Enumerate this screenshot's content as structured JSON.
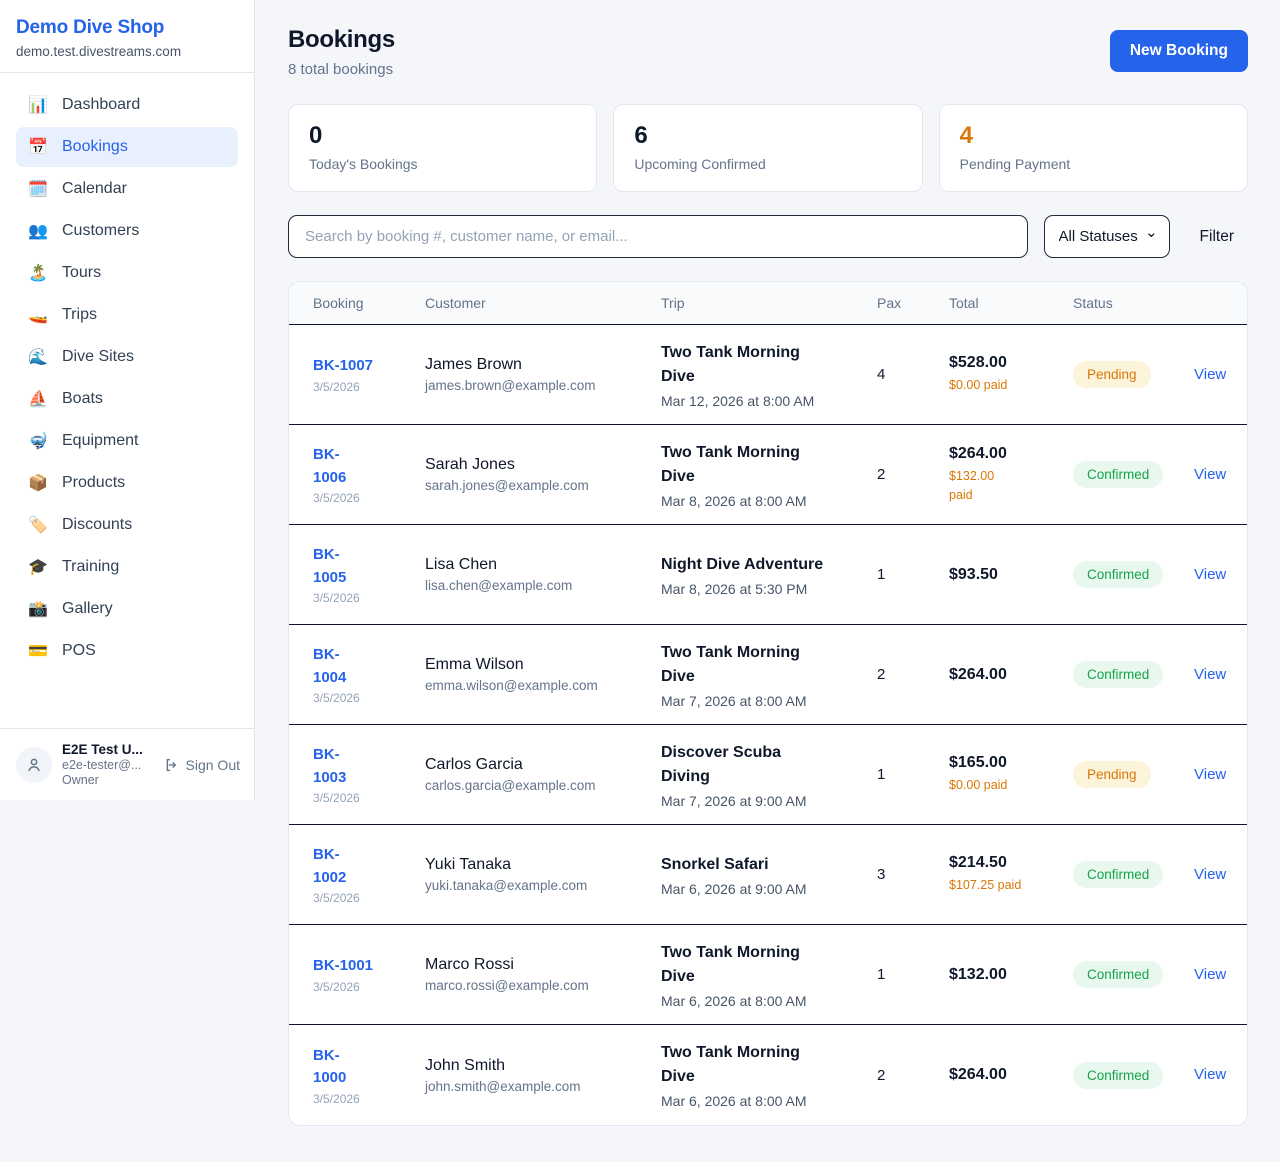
{
  "brand": {
    "name": "Demo Dive Shop",
    "domain": "demo.test.divestreams.com"
  },
  "sidebar": {
    "items": [
      {
        "label": "Dashboard",
        "icon": "📊",
        "icon_name": "bar-chart-icon",
        "active": false
      },
      {
        "label": "Bookings",
        "icon": "📅",
        "icon_name": "calendar-icon",
        "active": true
      },
      {
        "label": "Calendar",
        "icon": "🗓️",
        "icon_name": "spiral-calendar-icon",
        "active": false
      },
      {
        "label": "Customers",
        "icon": "👥",
        "icon_name": "people-icon",
        "active": false
      },
      {
        "label": "Tours",
        "icon": "🏝️",
        "icon_name": "island-icon",
        "active": false
      },
      {
        "label": "Trips",
        "icon": "🚤",
        "icon_name": "speedboat-icon",
        "active": false
      },
      {
        "label": "Dive Sites",
        "icon": "🌊",
        "icon_name": "wave-icon",
        "active": false
      },
      {
        "label": "Boats",
        "icon": "⛵",
        "icon_name": "sailboat-icon",
        "active": false
      },
      {
        "label": "Equipment",
        "icon": "🤿",
        "icon_name": "diving-mask-icon",
        "active": false
      },
      {
        "label": "Products",
        "icon": "📦",
        "icon_name": "package-icon",
        "active": false
      },
      {
        "label": "Discounts",
        "icon": "🏷️",
        "icon_name": "tag-icon",
        "active": false
      },
      {
        "label": "Training",
        "icon": "🎓",
        "icon_name": "graduation-cap-icon",
        "active": false
      },
      {
        "label": "Gallery",
        "icon": "📸",
        "icon_name": "camera-icon",
        "active": false
      },
      {
        "label": "POS",
        "icon": "💳",
        "icon_name": "credit-card-icon",
        "active": false
      }
    ],
    "user": {
      "name": "E2E Test U...",
      "email": "e2e-tester@...",
      "role": "Owner",
      "sign_out_label": "Sign Out"
    }
  },
  "header": {
    "title": "Bookings",
    "subtitle": "8 total bookings",
    "new_booking_label": "New Booking"
  },
  "stats": [
    {
      "value": "0",
      "label": "Today's Bookings",
      "orange": false
    },
    {
      "value": "6",
      "label": "Upcoming Confirmed",
      "orange": false
    },
    {
      "value": "4",
      "label": "Pending Payment",
      "orange": true
    }
  ],
  "filters": {
    "search_placeholder": "Search by booking #, customer name, or email...",
    "status_selected": "All Statuses",
    "filter_label": "Filter"
  },
  "table": {
    "columns": [
      "Booking",
      "Customer",
      "Trip",
      "Pax",
      "Total",
      "Status"
    ],
    "view_label": "View",
    "rows": [
      {
        "id": "BK-1007",
        "id_wrap": false,
        "date": "3/5/2026",
        "customer": "James Brown",
        "email": "james.brown@example.com",
        "trip": "Two Tank Morning Dive",
        "trip_datetime": "Mar 12, 2026 at 8:00 AM",
        "pax": "4",
        "total": "$528.00",
        "paid_lines": [
          "$0.00 paid"
        ],
        "status": "Pending"
      },
      {
        "id": "BK-1006",
        "id_wrap": true,
        "date": "3/5/2026",
        "customer": "Sarah Jones",
        "email": "sarah.jones@example.com",
        "trip": "Two Tank Morning Dive",
        "trip_datetime": "Mar 8, 2026 at 8:00 AM",
        "pax": "2",
        "total": "$264.00",
        "paid_lines": [
          "$132.00",
          "paid"
        ],
        "status": "Confirmed"
      },
      {
        "id": "BK-1005",
        "id_wrap": true,
        "date": "3/5/2026",
        "customer": "Lisa Chen",
        "email": "lisa.chen@example.com",
        "trip": "Night Dive Adventure",
        "trip_datetime": "Mar 8, 2026 at 5:30 PM",
        "pax": "1",
        "total": "$93.50",
        "paid_lines": [],
        "status": "Confirmed"
      },
      {
        "id": "BK-1004",
        "id_wrap": true,
        "date": "3/5/2026",
        "customer": "Emma Wilson",
        "email": "emma.wilson@example.com",
        "trip": "Two Tank Morning Dive",
        "trip_datetime": "Mar 7, 2026 at 8:00 AM",
        "pax": "2",
        "total": "$264.00",
        "paid_lines": [],
        "status": "Confirmed"
      },
      {
        "id": "BK-1003",
        "id_wrap": true,
        "date": "3/5/2026",
        "customer": "Carlos Garcia",
        "email": "carlos.garcia@example.com",
        "trip": "Discover Scuba Diving",
        "trip_datetime": "Mar 7, 2026 at 9:00 AM",
        "pax": "1",
        "total": "$165.00",
        "paid_lines": [
          "$0.00 paid"
        ],
        "status": "Pending"
      },
      {
        "id": "BK-1002",
        "id_wrap": true,
        "date": "3/5/2026",
        "customer": "Yuki Tanaka",
        "email": "yuki.tanaka@example.com",
        "trip": "Snorkel Safari",
        "trip_datetime": "Mar 6, 2026 at 9:00 AM",
        "pax": "3",
        "total": "$214.50",
        "paid_lines": [
          "$107.25 paid"
        ],
        "status": "Confirmed"
      },
      {
        "id": "BK-1001",
        "id_wrap": false,
        "date": "3/5/2026",
        "customer": "Marco Rossi",
        "email": "marco.rossi@example.com",
        "trip": "Two Tank Morning Dive",
        "trip_datetime": "Mar 6, 2026 at 8:00 AM",
        "pax": "1",
        "total": "$132.00",
        "paid_lines": [],
        "status": "Confirmed"
      },
      {
        "id": "BK-1000",
        "id_wrap": true,
        "date": "3/5/2026",
        "customer": "John Smith",
        "email": "john.smith@example.com",
        "trip": "Two Tank Morning Dive",
        "trip_datetime": "Mar 6, 2026 at 8:00 AM",
        "pax": "2",
        "total": "$264.00",
        "paid_lines": [],
        "status": "Confirmed"
      }
    ]
  },
  "colors": {
    "accent": "#2563eb",
    "pending_text": "#d97706",
    "pending_bg": "#fbf3da",
    "confirmed_text": "#16a34a",
    "confirmed_bg": "#e8f8ee"
  }
}
